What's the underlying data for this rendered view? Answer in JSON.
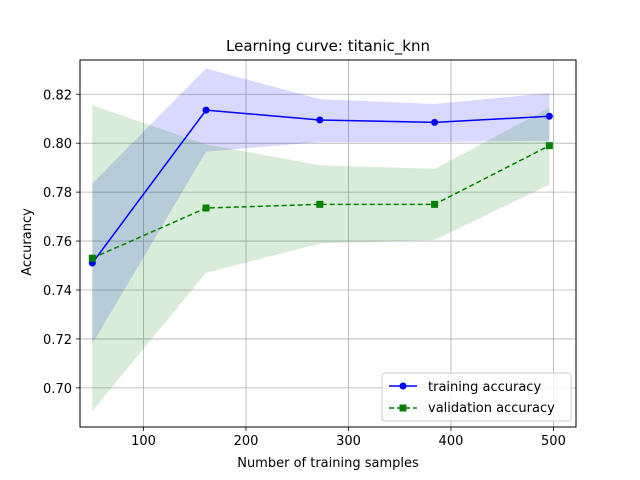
{
  "chart_data": {
    "type": "line",
    "title": "Learning curve: titanic_knn",
    "xlabel": "Number of training samples",
    "ylabel": "Accurancy",
    "xlim": [
      38,
      522
    ],
    "ylim": [
      0.684,
      0.834
    ],
    "xticks": [
      100,
      200,
      300,
      400,
      500
    ],
    "yticks": [
      0.7,
      0.72,
      0.74,
      0.76,
      0.78,
      0.8,
      0.82
    ],
    "grid": true,
    "legend_position": "bottom-right",
    "x": [
      50,
      161,
      272,
      384,
      496
    ],
    "series": [
      {
        "name": "training accuracy",
        "color": "#0000ff",
        "line_style": "solid",
        "marker": "circle",
        "values": [
          0.751,
          0.8135,
          0.8095,
          0.8085,
          0.811
        ],
        "band_upper": [
          0.7835,
          0.8305,
          0.818,
          0.816,
          0.8205
        ],
        "band_lower": [
          0.718,
          0.7965,
          0.8005,
          0.8005,
          0.801
        ],
        "band_color": "#0000ff",
        "band_opacity": 0.15
      },
      {
        "name": "validation accuracy",
        "color": "#008000",
        "line_style": "dashed",
        "marker": "square",
        "values": [
          0.753,
          0.7735,
          0.775,
          0.775,
          0.799
        ],
        "band_upper": [
          0.8155,
          0.7995,
          0.791,
          0.7895,
          0.8145
        ],
        "band_lower": [
          0.6905,
          0.747,
          0.759,
          0.7605,
          0.783
        ],
        "band_color": "#008000",
        "band_opacity": 0.15
      }
    ]
  }
}
